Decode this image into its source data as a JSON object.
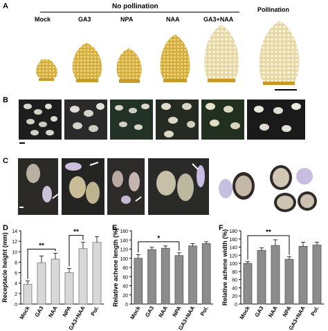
{
  "panels": {
    "A": {
      "label": "A",
      "group_header": "No pollination",
      "column_labels": [
        "Mock",
        "GA3",
        "NPA",
        "NAA",
        "GA3+NAA",
        "Pollination"
      ]
    },
    "B": {
      "label": "B"
    },
    "C": {
      "label": "C"
    },
    "D": {
      "label": "D"
    },
    "E": {
      "label": "E"
    },
    "F": {
      "label": "F"
    }
  },
  "colors": {
    "bar_fill_D": "#d8d8d8",
    "bar_fill_EF": "#8c8c8c",
    "fruit": "#d9b64a",
    "photo_bg": "#000000"
  },
  "chart_data": [
    {
      "type": "bar",
      "panel": "D",
      "categories": [
        "Mock",
        "GA3",
        "NAA",
        "NPA",
        "GA3+NAA",
        "Pol."
      ],
      "values": [
        3.8,
        7.9,
        8.6,
        6.0,
        10.6,
        11.8
      ],
      "errors": [
        0.6,
        1.3,
        1.1,
        0.8,
        1.2,
        1.1
      ],
      "ylabel": "Receptacle height (mm)",
      "ylim": [
        0,
        14
      ],
      "yticks": [
        0,
        2,
        4,
        6,
        8,
        10,
        12,
        14
      ],
      "significance": [
        {
          "label": "**",
          "from": "Mock",
          "to": "NAA"
        },
        {
          "label": "**",
          "from": "NPA",
          "to": "GA3+NAA"
        }
      ]
    },
    {
      "type": "bar",
      "panel": "E",
      "categories": [
        "Mock",
        "GA3",
        "NAA",
        "NPA",
        "GA3+NAA",
        "Pol."
      ],
      "values": [
        100,
        119,
        122,
        106,
        127,
        132
      ],
      "errors": [
        8,
        5,
        5,
        6,
        5,
        4
      ],
      "ylabel": "Relative achene length (%)",
      "ylim": [
        0,
        160
      ],
      "yticks": [
        0,
        20,
        40,
        60,
        80,
        100,
        120,
        140,
        160
      ],
      "significance": [
        {
          "label": "*",
          "from": "Mock",
          "to": "NPA"
        }
      ]
    },
    {
      "type": "bar",
      "panel": "F",
      "categories": [
        "Mock",
        "GA3",
        "NAA",
        "NPA",
        "GA3+NAA",
        "Pol."
      ],
      "values": [
        100,
        132,
        144,
        110,
        142,
        145
      ],
      "errors": [
        4,
        6,
        14,
        6,
        10,
        7
      ],
      "ylabel": "Relative achene width (%)",
      "ylim": [
        0,
        180
      ],
      "yticks": [
        0,
        20,
        40,
        60,
        80,
        100,
        120,
        140,
        160,
        180
      ],
      "significance": [
        {
          "label": "**",
          "from": "Mock",
          "to": "NPA"
        }
      ]
    }
  ]
}
